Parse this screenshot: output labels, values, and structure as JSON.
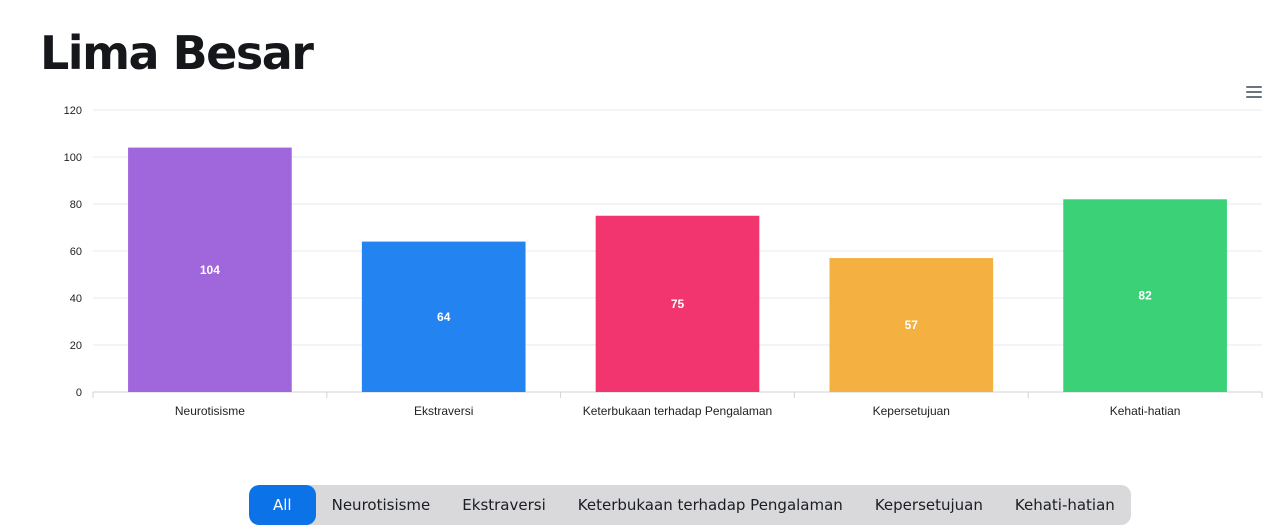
{
  "page": {
    "title": "Lima Besar"
  },
  "toolbar": {
    "menu_icon": "hamburger-menu-icon"
  },
  "chart_data": {
    "type": "bar",
    "title": "Lima Besar",
    "categories": [
      "Neurotisisme",
      "Ekstraversi",
      "Keterbukaan terhadap Pengalaman",
      "Kepersetujuan",
      "Kehati-hatian"
    ],
    "values": [
      104,
      64,
      75,
      57,
      82
    ],
    "colors": [
      "#a066db",
      "#2383f0",
      "#f2346f",
      "#f5b042",
      "#3ad177"
    ],
    "ylim": [
      0,
      120
    ],
    "yticks": [
      0,
      20,
      40,
      60,
      80,
      100,
      120
    ],
    "xlabel": "",
    "ylabel": "",
    "grid": true,
    "data_labels": true
  },
  "filters": {
    "items": [
      "All",
      "Neurotisisme",
      "Ekstraversi",
      "Keterbukaan terhadap Pengalaman",
      "Kepersetujuan",
      "Kehati-hatian"
    ],
    "active": "All"
  }
}
